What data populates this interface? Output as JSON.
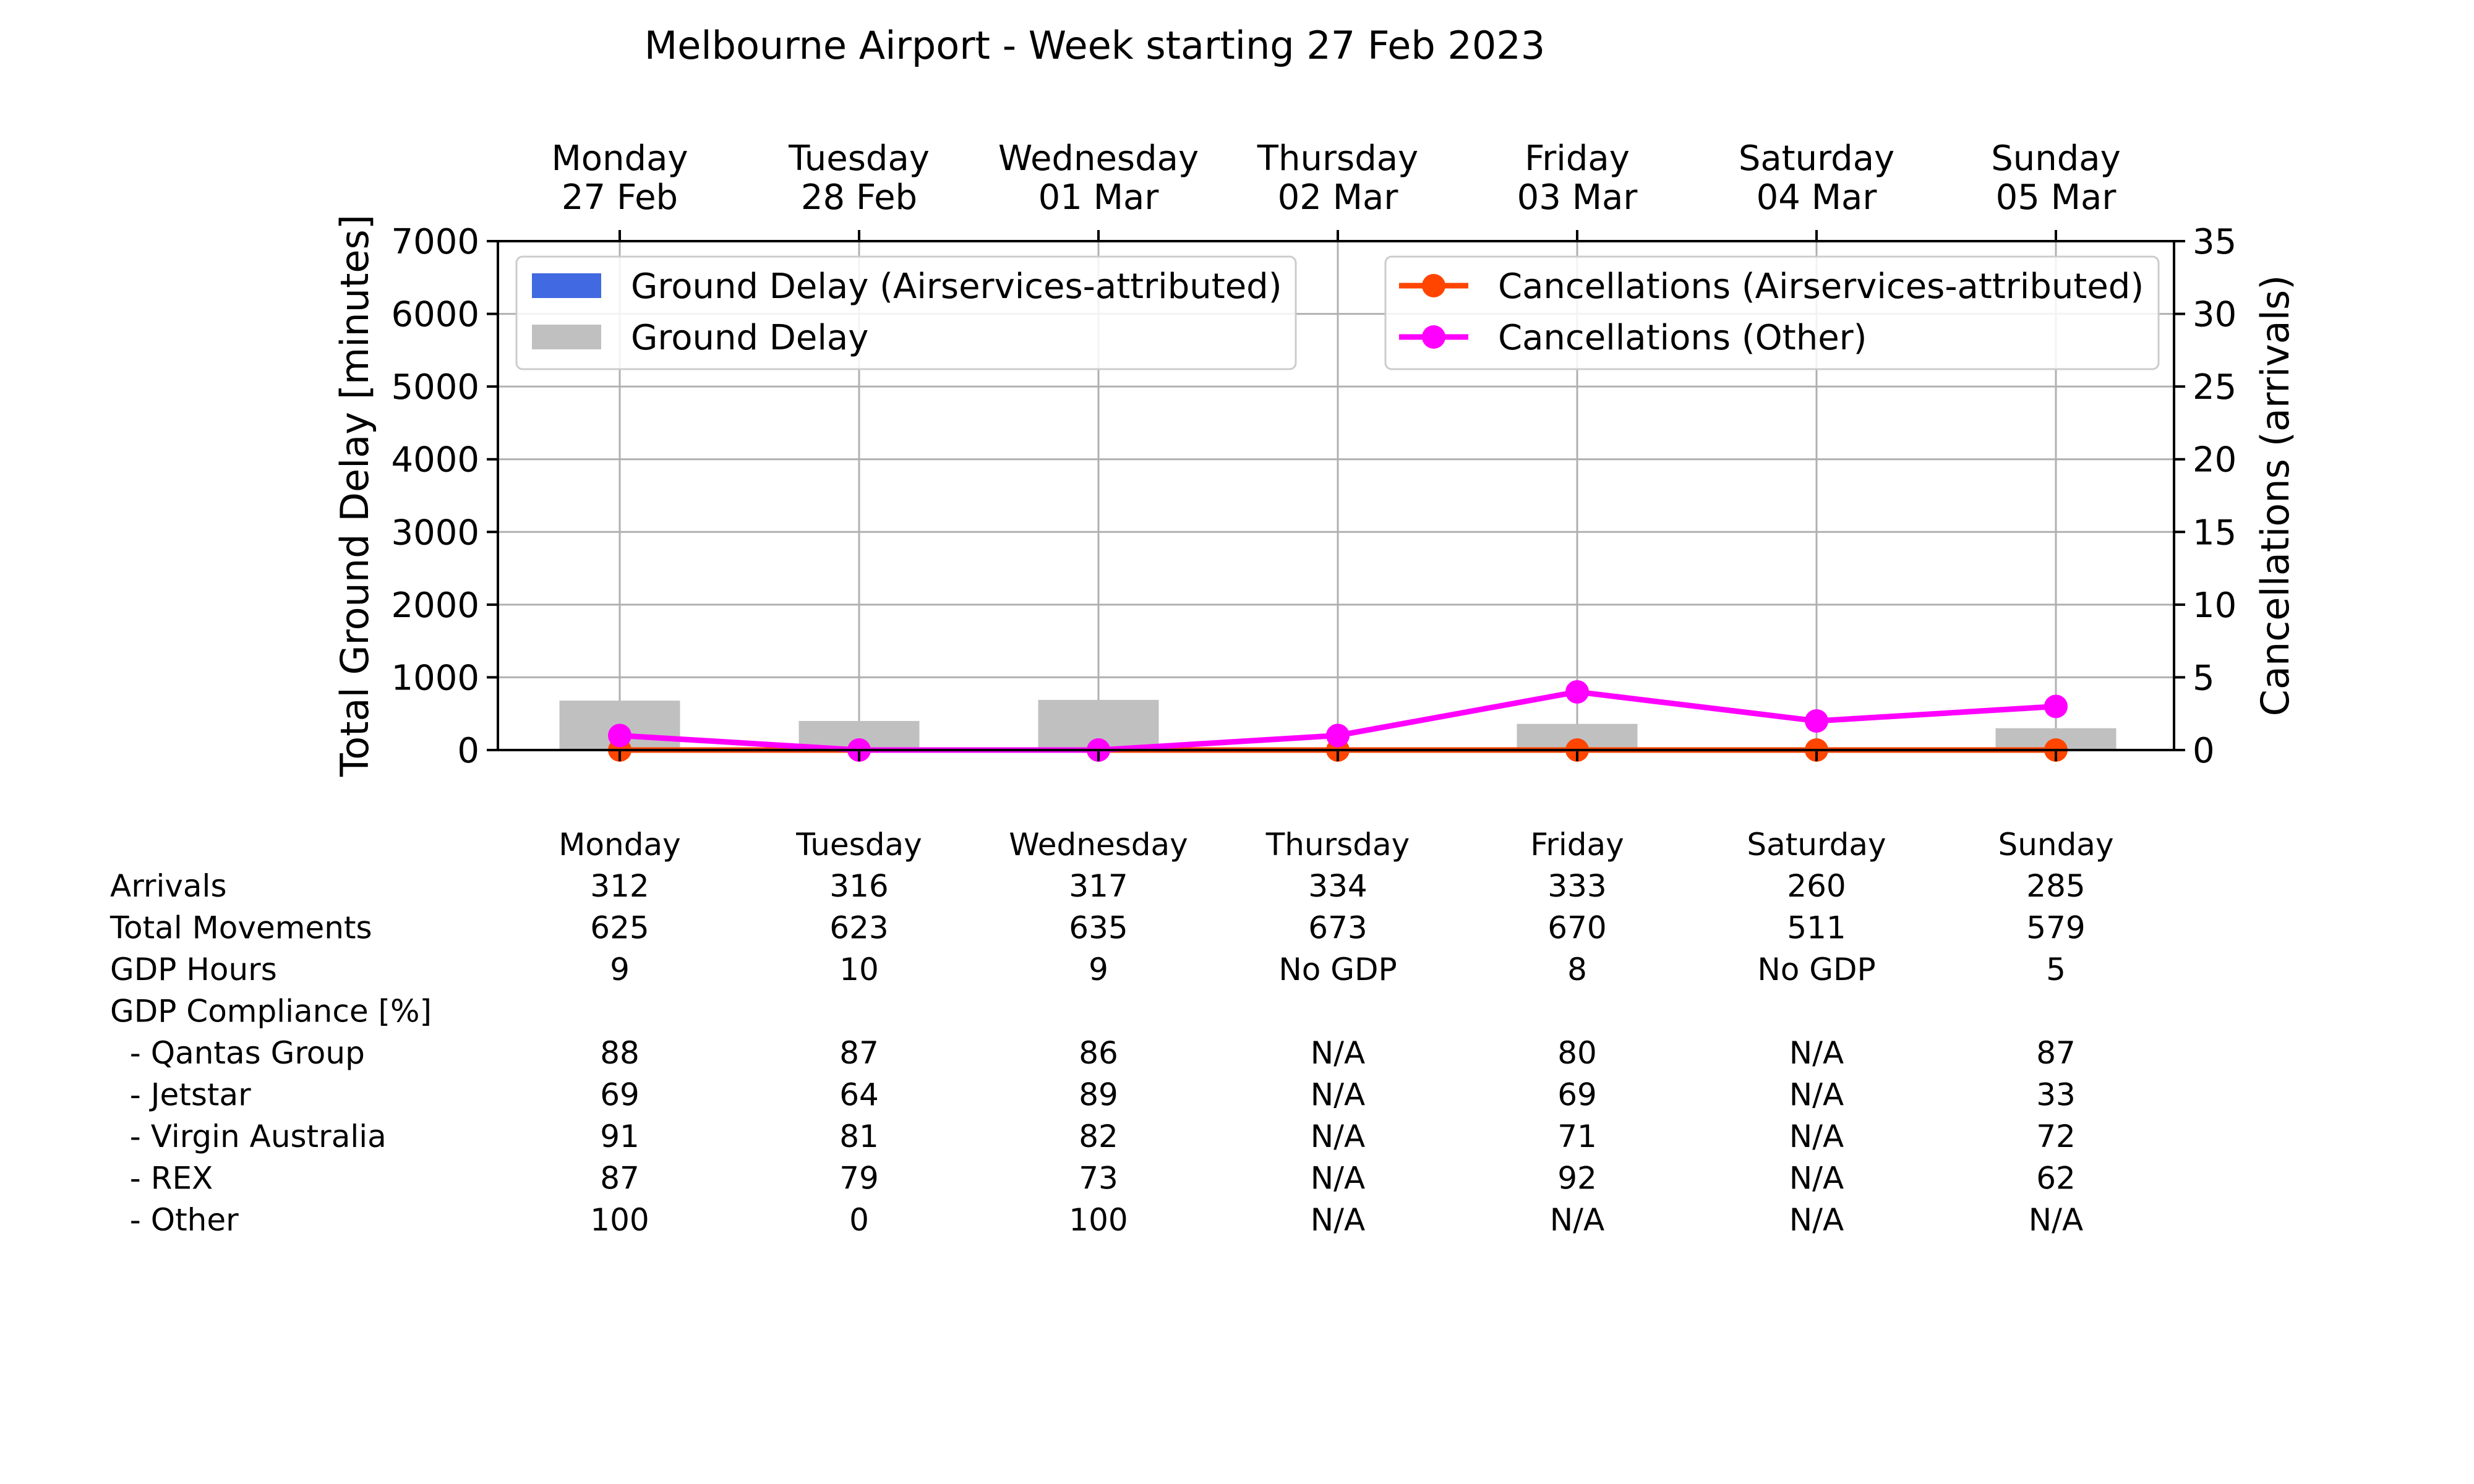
{
  "title": "Melbourne Airport - Week starting 27 Feb 2023",
  "chart_data": {
    "type": "bar",
    "days": [
      {
        "name": "Monday",
        "date": "27 Feb"
      },
      {
        "name": "Tuesday",
        "date": "28 Feb"
      },
      {
        "name": "Wednesday",
        "date": "01 Mar"
      },
      {
        "name": "Thursday",
        "date": "02 Mar"
      },
      {
        "name": "Friday",
        "date": "03 Mar"
      },
      {
        "name": "Saturday",
        "date": "04 Mar"
      },
      {
        "name": "Sunday",
        "date": "05 Mar"
      }
    ],
    "ylabel_left": "Total Ground Delay [minutes]",
    "ylabel_right": "Cancellations (arrivals)",
    "ylim_left": [
      0,
      7000
    ],
    "ylim_right": [
      0,
      35
    ],
    "yticks_left": [
      "0",
      "1000",
      "2000",
      "3000",
      "4000",
      "5000",
      "6000",
      "7000"
    ],
    "yticks_right": [
      "0",
      "5",
      "10",
      "15",
      "20",
      "25",
      "30",
      "35"
    ],
    "grid": true,
    "bar_series": [
      {
        "name": "Ground Delay (Airservices-attributed)",
        "color": "#4169e1",
        "values": [
          0,
          0,
          0,
          0,
          0,
          0,
          0
        ]
      },
      {
        "name": "Ground Delay",
        "color": "#c0c0c0",
        "values": [
          680,
          400,
          690,
          0,
          360,
          0,
          300
        ]
      }
    ],
    "line_series": [
      {
        "name": "Cancellations (Airservices-attributed)",
        "color": "#ff4500",
        "values": [
          0,
          0,
          0,
          0,
          0,
          0,
          0
        ]
      },
      {
        "name": "Cancellations (Other)",
        "color": "#ff00ff",
        "values": [
          1,
          0,
          0,
          1,
          4,
          2,
          3
        ]
      }
    ],
    "legend_left_position": "top-left",
    "legend_right_position": "top-right"
  },
  "table": {
    "header": [
      "Monday",
      "Tuesday",
      "Wednesday",
      "Thursday",
      "Friday",
      "Saturday",
      "Sunday"
    ],
    "rows": [
      {
        "label": "Arrivals",
        "values": [
          "312",
          "316",
          "317",
          "334",
          "333",
          "260",
          "285"
        ]
      },
      {
        "label": "Total Movements",
        "values": [
          "625",
          "623",
          "635",
          "673",
          "670",
          "511",
          "579"
        ]
      },
      {
        "label": "GDP Hours",
        "values": [
          "9",
          "10",
          "9",
          "No GDP",
          "8",
          "No GDP",
          "5"
        ]
      },
      {
        "label": "GDP Compliance [%]",
        "values": []
      },
      {
        "label": "  - Qantas Group",
        "values": [
          "88",
          "87",
          "86",
          "N/A",
          "80",
          "N/A",
          "87"
        ]
      },
      {
        "label": "  - Jetstar",
        "values": [
          "69",
          "64",
          "89",
          "N/A",
          "69",
          "N/A",
          "33"
        ]
      },
      {
        "label": "  - Virgin Australia",
        "values": [
          "91",
          "81",
          "82",
          "N/A",
          "71",
          "N/A",
          "72"
        ]
      },
      {
        "label": "  - REX",
        "values": [
          "87",
          "79",
          "73",
          "N/A",
          "92",
          "N/A",
          "62"
        ]
      },
      {
        "label": "  - Other",
        "values": [
          "100",
          "0",
          "100",
          "N/A",
          "N/A",
          "N/A",
          "N/A"
        ]
      }
    ]
  }
}
